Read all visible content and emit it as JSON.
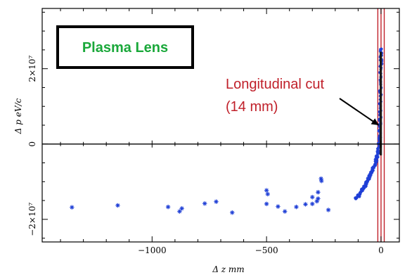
{
  "chart_data": {
    "type": "scatter",
    "xlabel": "Δ z mm",
    "ylabel": "Δ p eV/c",
    "xlim": [
      -1480,
      80
    ],
    "ylim": [
      -26000000.0,
      36000000.0
    ],
    "x_ticks": [
      {
        "value": -1000,
        "label": "−1000"
      },
      {
        "value": -500,
        "label": "−500"
      },
      {
        "value": 0,
        "label": "0"
      }
    ],
    "y_ticks": [
      {
        "value": -20000000.0,
        "label": "−2×10⁷"
      },
      {
        "value": 0,
        "label": "0"
      },
      {
        "value": 20000000.0,
        "label": "2×10⁷"
      }
    ],
    "grid": false,
    "legend": {
      "text": "Plasma Lens",
      "color": "#1aa83a",
      "placement": "top-left"
    },
    "annotation": {
      "line1": "Longitudinal cut",
      "line2": "(14 mm)",
      "color": "#c0202a",
      "arrow_target": [
        -10,
        5000000.0
      ]
    },
    "cut_lines": [
      -14,
      0,
      14
    ],
    "cut_color": "#c0202a",
    "series": [
      {
        "marker_color": "#1f3fd6",
        "tail_points": [
          [
            -1350,
            -16800000.0
          ],
          [
            -1150,
            -16300000.0
          ],
          [
            -930,
            -16700000.0
          ],
          [
            -870,
            -17100000.0
          ],
          [
            -880,
            -17900000.0
          ],
          [
            -770,
            -15800000.0
          ],
          [
            -720,
            -15300000.0
          ],
          [
            -650,
            -18200000.0
          ],
          [
            -500,
            -12300000.0
          ],
          [
            -495,
            -13300000.0
          ],
          [
            -500,
            -15900000.0
          ],
          [
            -420,
            -17900000.0
          ],
          [
            -450,
            -16600000.0
          ],
          [
            -370,
            -16700000.0
          ],
          [
            -330,
            -16000000.0
          ],
          [
            -300,
            -14100000.0
          ],
          [
            -275,
            -12800000.0
          ],
          [
            -262,
            -9200000.0
          ],
          [
            -260,
            -9800000.0
          ],
          [
            -275,
            -14500000.0
          ],
          [
            -280,
            -15200000.0
          ],
          [
            -300,
            -15900000.0
          ],
          [
            -230,
            -17500000.0
          ]
        ],
        "core_curve": [
          [
            -110,
            -14500000.0
          ],
          [
            -95,
            -13500000.0
          ],
          [
            -80,
            -12000000.0
          ],
          [
            -65,
            -10500000.0
          ],
          [
            -50,
            -8800000.0
          ],
          [
            -38,
            -7200000.0
          ],
          [
            -28,
            -5500000.0
          ],
          [
            -20,
            -4000000.0
          ],
          [
            -12,
            -2000000.0
          ],
          [
            -6,
            2000000.0
          ],
          [
            -4,
            8000000.0
          ],
          [
            -2,
            15000000.0
          ],
          [
            0,
            22000000.0
          ],
          [
            2,
            25500000.0
          ]
        ]
      }
    ]
  }
}
